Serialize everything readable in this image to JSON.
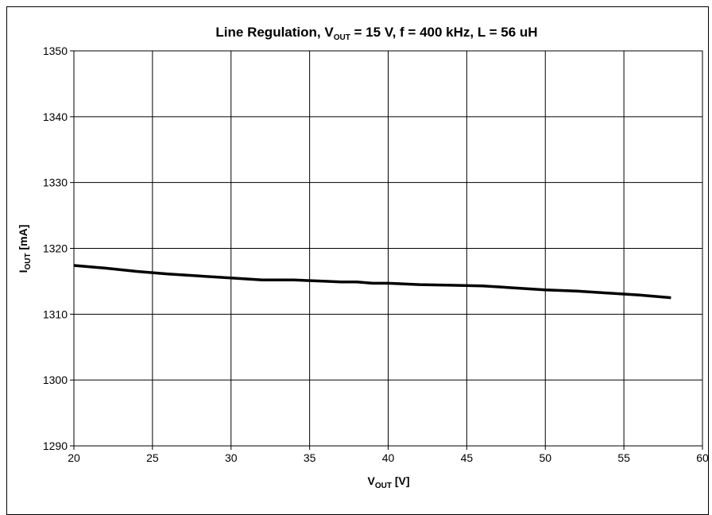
{
  "chart_data": {
    "type": "line",
    "title": {
      "pre": "Line Regulation, V",
      "sub": "OUT",
      "post": " = 15 V, f = 400 kHz, L = 56 uH"
    },
    "xlabel": {
      "pre": "V",
      "sub": "OUT",
      "post": " [V]"
    },
    "ylabel": {
      "pre": "I",
      "sub": "OUT",
      "post": " [mA]"
    },
    "xlim": [
      20,
      60
    ],
    "ylim": [
      1290,
      1350
    ],
    "xticks": [
      "20",
      "25",
      "30",
      "35",
      "40",
      "45",
      "50",
      "55",
      "60"
    ],
    "yticks": [
      "1350",
      "1340",
      "1330",
      "1320",
      "1310",
      "1300",
      "1290"
    ],
    "grid": true,
    "line_color": "#000000",
    "series": [
      {
        "x": [
          20,
          22,
          24,
          26,
          28,
          30,
          32,
          34,
          36,
          37,
          38,
          39,
          40,
          42,
          44,
          46,
          48,
          50,
          52,
          54,
          56,
          58
        ],
        "y": [
          1317.4,
          1317.0,
          1316.5,
          1316.1,
          1315.8,
          1315.5,
          1315.2,
          1315.2,
          1315.0,
          1314.9,
          1314.9,
          1314.7,
          1314.7,
          1314.5,
          1314.4,
          1314.3,
          1314.0,
          1313.7,
          1313.5,
          1313.2,
          1312.9,
          1312.5
        ]
      }
    ]
  }
}
